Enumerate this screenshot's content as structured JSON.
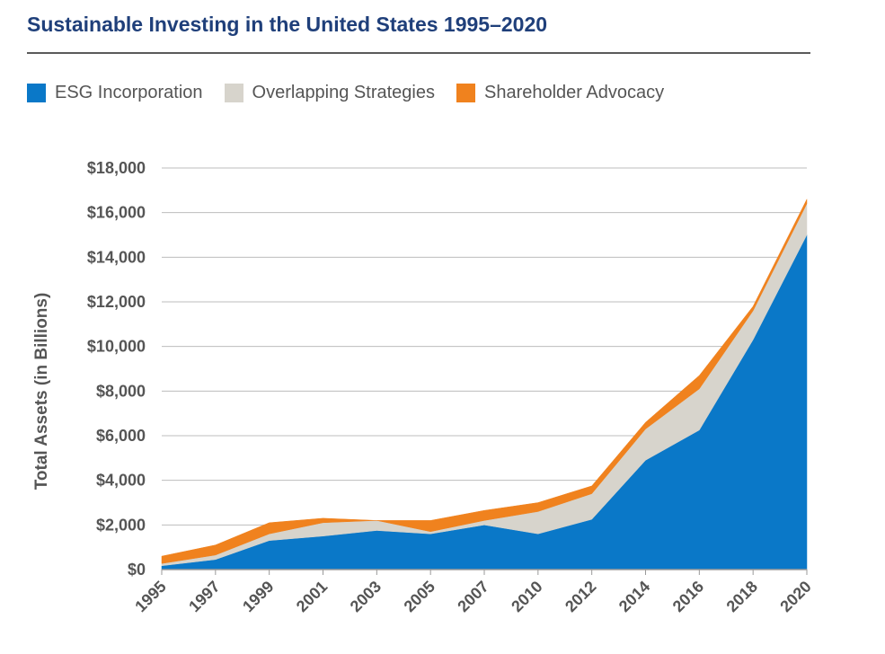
{
  "chart_data": {
    "type": "area",
    "stacked": true,
    "title": "Sustainable Investing in the United States 1995–2020",
    "xlabel": "",
    "ylabel": "Total Assets (in Billions)",
    "categories": [
      "1995",
      "1997",
      "1999",
      "2001",
      "2003",
      "2005",
      "2007",
      "2010",
      "2012",
      "2014",
      "2016",
      "2018",
      "2020"
    ],
    "ylim": [
      0,
      18000
    ],
    "y_ticks": [
      0,
      2000,
      4000,
      6000,
      8000,
      10000,
      12000,
      14000,
      16000,
      18000
    ],
    "y_tick_labels": [
      "$0",
      "$2,000",
      "$4,000",
      "$6,000",
      "$8,000",
      "$10,000",
      "$12,000",
      "$14,000",
      "$16,000",
      "$18,000"
    ],
    "grid": true,
    "legend_position": "top",
    "series": [
      {
        "name": "ESG Incorporation",
        "color": "#0a78c8",
        "values": [
          170,
          450,
          1300,
          1500,
          1750,
          1600,
          2000,
          1600,
          2250,
          4900,
          6250,
          10300,
          15000
        ]
      },
      {
        "name": "Overlapping Strategies",
        "color": "#d7d4cc",
        "values": [
          100,
          200,
          300,
          600,
          450,
          100,
          200,
          1000,
          1150,
          1400,
          1850,
          1300,
          1400
        ]
      },
      {
        "name": "Shareholder Advocacy",
        "color": "#f0821e",
        "values": [
          330,
          450,
          500,
          200,
          0,
          500,
          450,
          400,
          350,
          300,
          600,
          200,
          200
        ]
      }
    ]
  }
}
